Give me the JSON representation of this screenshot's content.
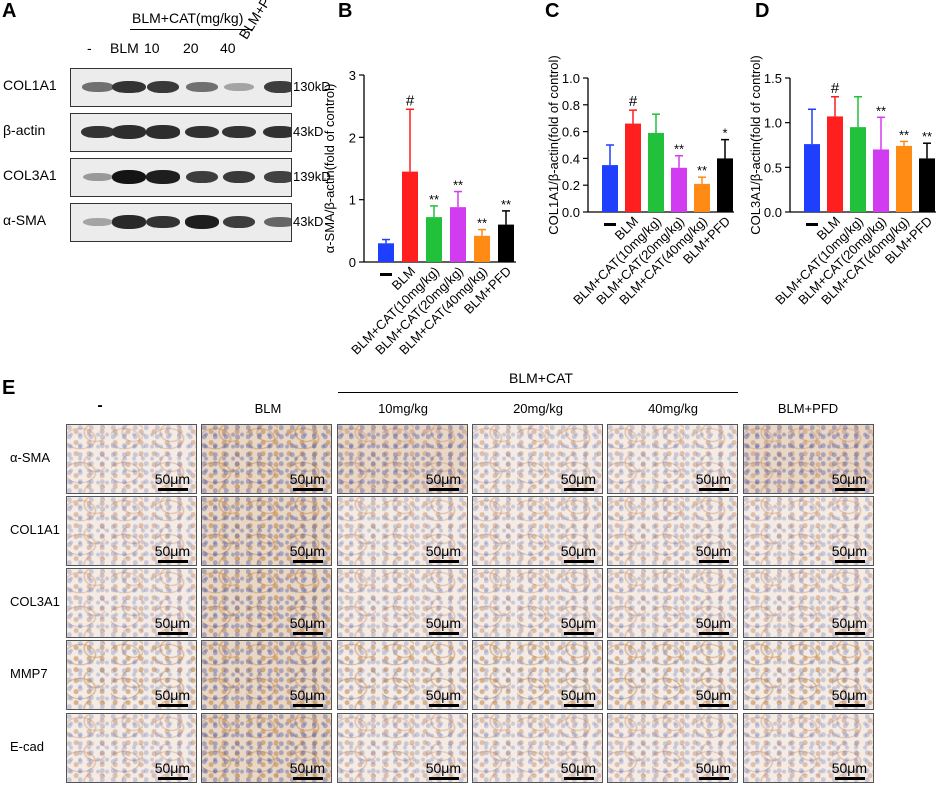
{
  "panel_A": {
    "letter": "A",
    "header_group": "BLM+CAT(mg/kg)",
    "lane_labels": [
      "-",
      "BLM",
      "10",
      "20",
      "40",
      "BLM+PFD"
    ],
    "blots": [
      {
        "protein": "COL1A1",
        "size": "130kD",
        "intensity": [
          0.55,
          0.85,
          0.82,
          0.55,
          0.3,
          0.8
        ]
      },
      {
        "protein": "β-actin",
        "size": "43kD",
        "intensity": [
          0.85,
          0.88,
          0.88,
          0.86,
          0.85,
          0.86
        ]
      },
      {
        "protein": "COL3A1",
        "size": "139kD",
        "intensity": [
          0.35,
          1.0,
          0.95,
          0.8,
          0.82,
          0.78
        ]
      },
      {
        "protein": "α-SMA",
        "size": "43kD",
        "intensity": [
          0.3,
          0.9,
          0.85,
          0.95,
          0.8,
          0.6
        ]
      }
    ]
  },
  "chart_data": [
    {
      "letter": "B",
      "type": "bar",
      "ylabel": "α-SMA/β-actin(fold of control)",
      "ylim": [
        0,
        3
      ],
      "yticks": [
        0,
        1,
        2,
        3
      ],
      "categories": [
        "-",
        "BLM",
        "BLM+CAT(10mg/kg)",
        "BLM+CAT(20mg/kg)",
        "BLM+CAT(40mg/kg)",
        "BLM+PFD"
      ],
      "values": [
        0.3,
        1.45,
        0.72,
        0.88,
        0.42,
        0.6
      ],
      "errors": [
        0.06,
        1.0,
        0.18,
        0.25,
        0.1,
        0.22
      ],
      "annotations": [
        "",
        "#",
        "**",
        "**",
        "**",
        "**"
      ],
      "colors": [
        "#1f3fff",
        "#ff1f1f",
        "#22c13c",
        "#d23cf0",
        "#ff8a14",
        "#000000"
      ]
    },
    {
      "letter": "C",
      "type": "bar",
      "ylabel": "COL1A1/β-actin(fold of control)",
      "ylim": [
        0,
        1.0
      ],
      "yticks": [
        0.0,
        0.2,
        0.4,
        0.6,
        0.8,
        1.0
      ],
      "categories": [
        "-",
        "BLM",
        "BLM+CAT(10mg/kg)",
        "BLM+CAT(20mg/kg)",
        "BLM+CAT(40mg/kg)",
        "BLM+PFD"
      ],
      "values": [
        0.35,
        0.66,
        0.59,
        0.33,
        0.21,
        0.4
      ],
      "errors": [
        0.15,
        0.1,
        0.14,
        0.09,
        0.05,
        0.14
      ],
      "annotations": [
        "",
        "#",
        "",
        "**",
        "**",
        "*"
      ],
      "colors": [
        "#1f3fff",
        "#ff1f1f",
        "#22c13c",
        "#d23cf0",
        "#ff8a14",
        "#000000"
      ]
    },
    {
      "letter": "D",
      "type": "bar",
      "ylabel": "COL3A1/β-actin(fold of control)",
      "ylim": [
        0,
        1.5
      ],
      "yticks": [
        0.0,
        0.5,
        1.0,
        1.5
      ],
      "categories": [
        "-",
        "BLM",
        "BLM+CAT(10mg/kg)",
        "BLM+CAT(20mg/kg)",
        "BLM+CAT(40mg/kg)",
        "BLM+PFD"
      ],
      "values": [
        0.76,
        1.07,
        0.95,
        0.7,
        0.74,
        0.6
      ],
      "errors": [
        0.39,
        0.22,
        0.34,
        0.36,
        0.05,
        0.17
      ],
      "annotations": [
        "",
        "#",
        "",
        "**",
        "**",
        "**"
      ],
      "colors": [
        "#1f3fff",
        "#ff1f1f",
        "#22c13c",
        "#d23cf0",
        "#ff8a14",
        "#000000"
      ]
    }
  ],
  "panel_E": {
    "letter": "E",
    "group_header": "BLM+CAT",
    "column_labels": [
      "-",
      "BLM",
      "10mg/kg",
      "20mg/kg",
      "40mg/kg",
      "BLM+PFD"
    ],
    "row_labels": [
      "α-SMA",
      "COL1A1",
      "COL3A1",
      "MMP7",
      "E-cad"
    ],
    "scale_label": "50μm"
  }
}
